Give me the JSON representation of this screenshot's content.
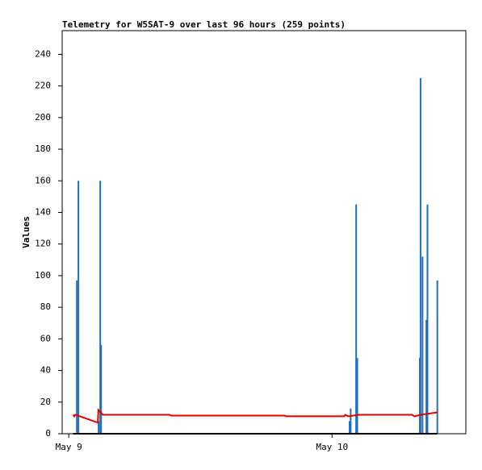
{
  "chart_data": {
    "type": "bar-line",
    "title": "Telemetry for W5SAT-9 over last 96 hours (259 points)",
    "y_label": "Values",
    "xlim": [
      -0.6,
      36.2
    ],
    "xticks": [
      {
        "value": 0,
        "label": "May 9"
      },
      {
        "value": 24,
        "label": "May 10"
      }
    ],
    "ylim": [
      0,
      255
    ],
    "yticks": [
      0,
      20,
      40,
      60,
      80,
      100,
      120,
      140,
      160,
      180,
      200,
      220,
      240
    ],
    "series": [
      {
        "kind": "bar",
        "color": "#1f6fc0",
        "x": [
          0.74,
          0.88,
          2.72,
          2.87,
          2.95,
          25.6,
          25.7,
          26.2,
          26.3,
          32.0,
          32.07,
          32.25,
          32.6,
          32.7,
          33.6
        ],
        "values": [
          97,
          160,
          8,
          160,
          56,
          8,
          16,
          145,
          48,
          48,
          225,
          112,
          72,
          145,
          97
        ]
      },
      {
        "kind": "line",
        "color": "#e00000",
        "x": [
          0.4,
          0.5,
          0.6,
          2.65,
          2.7,
          3.1,
          9.2,
          9.3,
          19.7,
          19.8,
          25.1,
          25.2,
          25.5,
          26.4,
          31.3,
          31.5,
          32.1,
          33.6
        ],
        "values": [
          12,
          11,
          12,
          7,
          15,
          12,
          12,
          11.5,
          11.5,
          11,
          11,
          12,
          11,
          12,
          12,
          11,
          12,
          13.5
        ]
      },
      {
        "kind": "line",
        "color": "#000000",
        "x": [
          0.4,
          33.6
        ],
        "values": [
          0,
          0
        ]
      }
    ]
  }
}
